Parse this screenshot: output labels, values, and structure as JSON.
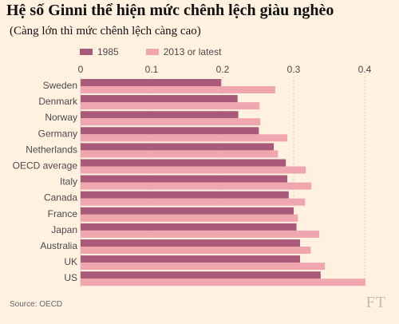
{
  "title": "Hệ số Ginni thể hiện mức chênh lệch giàu nghèo",
  "subtitle": "(Càng lớn thì mức chênh lệch càng cao)",
  "source": "Source: OECD",
  "logo": "FT",
  "colors": {
    "background": "#fff1e0",
    "series_1985": "#a85a78",
    "series_latest": "#f0a6ae",
    "grid": "#d9cdbf",
    "text": "#4a4a4a"
  },
  "chart_data": {
    "type": "bar",
    "orientation": "horizontal",
    "categories": [
      "Sweden",
      "Denmark",
      "Norway",
      "Germany",
      "Netherlands",
      "OECD average",
      "Italy",
      "Canada",
      "France",
      "Japan",
      "Australia",
      "UK",
      "US"
    ],
    "series": [
      {
        "name": "1985",
        "values": [
          0.198,
          0.221,
          0.222,
          0.251,
          0.272,
          0.289,
          0.291,
          0.293,
          0.3,
          0.304,
          0.309,
          0.309,
          0.338
        ]
      },
      {
        "name": "2013 or latest",
        "values": [
          0.274,
          0.252,
          0.253,
          0.291,
          0.278,
          0.317,
          0.325,
          0.316,
          0.306,
          0.336,
          0.324,
          0.344,
          0.401
        ]
      }
    ],
    "xlim": [
      0,
      0.4
    ],
    "xticks": [
      0,
      0.1,
      0.2,
      0.3,
      0.4
    ],
    "xtick_labels": [
      "0",
      "0.1",
      "0.2",
      "0.3",
      "0.4"
    ],
    "legend": "top-left",
    "grid": true
  }
}
